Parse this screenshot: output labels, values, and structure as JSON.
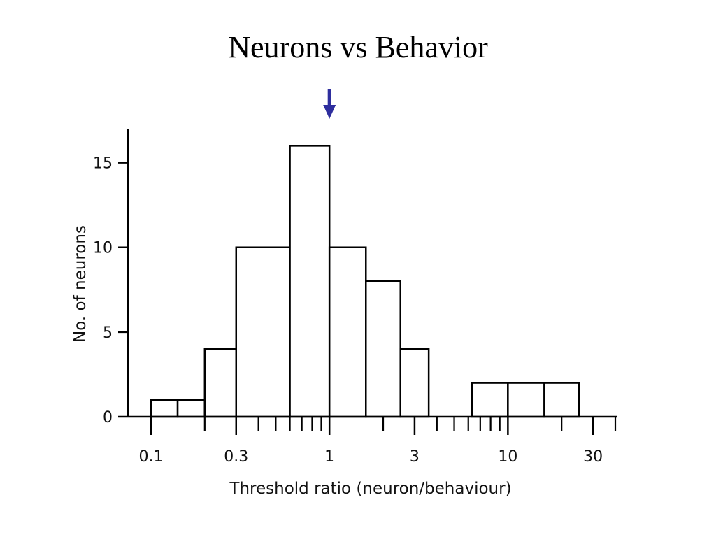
{
  "slide": {
    "title": "Neurons vs Behavior"
  },
  "colors": {
    "marker_arrow": "#2e2e9e",
    "bar_stroke": "#000000",
    "bar_fill": "#ffffff"
  },
  "chart_data": {
    "type": "bar",
    "title": "",
    "xlabel": "Threshold ratio (neuron/behaviour)",
    "ylabel": "No. of neurons",
    "x_scale": "log",
    "xlim": [
      0.1,
      40
    ],
    "ylim": [
      0,
      16.8
    ],
    "x_ticks": {
      "labeled": [
        {
          "value": 0.1,
          "label": "0.1"
        },
        {
          "value": 0.3,
          "label": "0.3"
        },
        {
          "value": 1,
          "label": "1"
        },
        {
          "value": 3,
          "label": "3"
        },
        {
          "value": 10,
          "label": "10"
        },
        {
          "value": 30,
          "label": "30"
        }
      ],
      "minor": [
        0.2,
        0.4,
        0.5,
        0.6,
        0.7,
        0.8,
        0.9,
        2,
        4,
        5,
        6,
        7,
        8,
        9,
        20,
        40
      ]
    },
    "y_ticks": [
      {
        "value": 0,
        "label": "0"
      },
      {
        "value": 5,
        "label": "5"
      },
      {
        "value": 10,
        "label": "10"
      },
      {
        "value": 15,
        "label": "15"
      }
    ],
    "bins": [
      {
        "x0": 0.1,
        "x1": 0.141,
        "count": 1
      },
      {
        "x0": 0.141,
        "x1": 0.2,
        "count": 1
      },
      {
        "x0": 0.2,
        "x1": 0.3,
        "count": 4
      },
      {
        "x0": 0.3,
        "x1": 0.6,
        "count": 10
      },
      {
        "x0": 0.6,
        "x1": 1.0,
        "count": 16
      },
      {
        "x0": 1.0,
        "x1": 1.6,
        "count": 10
      },
      {
        "x0": 1.6,
        "x1": 2.5,
        "count": 8
      },
      {
        "x0": 2.5,
        "x1": 3.6,
        "count": 4
      },
      {
        "x0": 6.3,
        "x1": 10,
        "count": 2
      },
      {
        "x0": 10,
        "x1": 16,
        "count": 2
      },
      {
        "x0": 16,
        "x1": 25,
        "count": 2
      }
    ],
    "marker": {
      "type": "arrow-down",
      "x": 1.0
    }
  }
}
